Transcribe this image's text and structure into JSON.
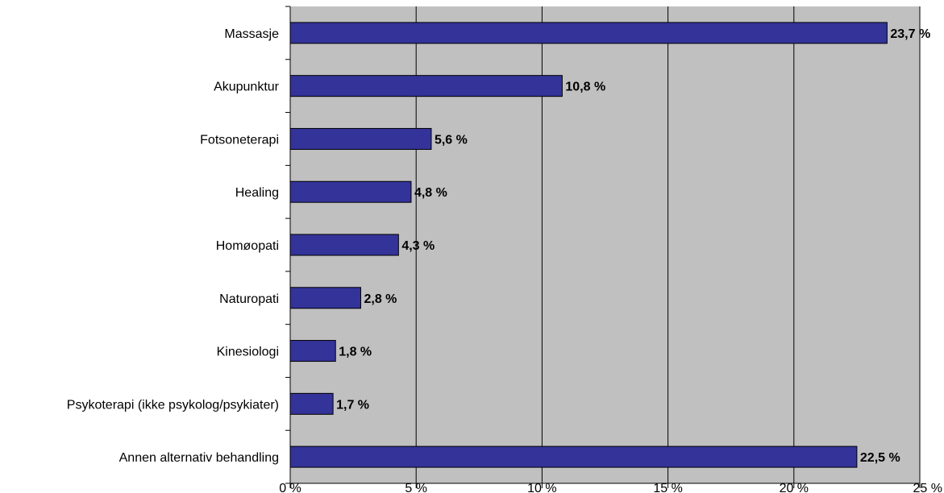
{
  "chart_data": {
    "type": "bar",
    "orientation": "horizontal",
    "categories": [
      "Massasje",
      "Akupunktur",
      "Fotsoneterapi",
      "Healing",
      "Homøopati",
      "Naturopati",
      "Kinesiologi",
      "Psykoterapi (ikke psykolog/psykiater)",
      "Annen alternativ behandling"
    ],
    "values": [
      23.7,
      10.8,
      5.6,
      4.8,
      4.3,
      2.8,
      1.8,
      1.7,
      22.5
    ],
    "value_labels": [
      "23,7 %",
      "10,8 %",
      "5,6 %",
      "4,8 %",
      "4,3 %",
      "2,8 %",
      "1,8 %",
      "1,7 %",
      "22,5 %"
    ],
    "xlim": [
      0,
      25
    ],
    "x_ticks": [
      0,
      5,
      10,
      15,
      20,
      25
    ],
    "x_tick_labels": [
      "0 %",
      "5 %",
      "10 %",
      "15 %",
      "20 %",
      "25 %"
    ],
    "grid": true,
    "colors": {
      "bar": "#333399",
      "plot_background": "#c0c0c0",
      "gridline": "#000000"
    }
  }
}
